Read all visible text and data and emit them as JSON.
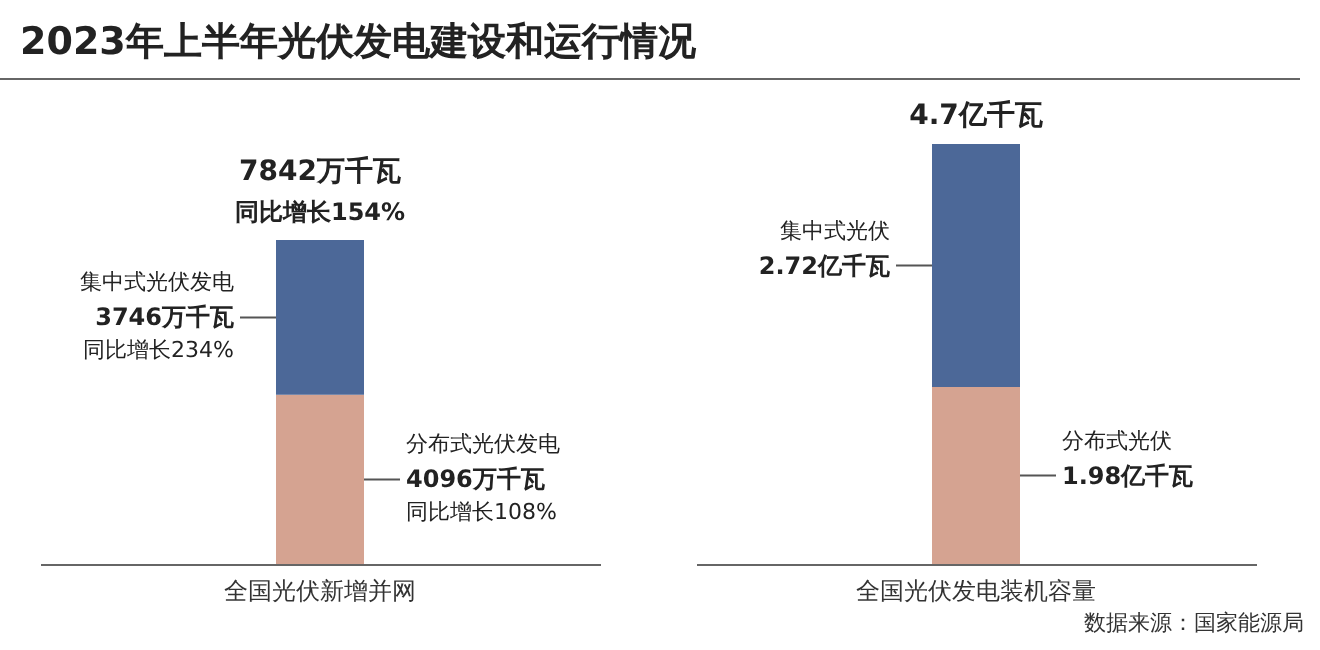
{
  "chart_data": [
    {
      "type": "bar",
      "title": "2023年上半年光伏发电建设和运行情况",
      "stacked": true,
      "categories": [
        "全国光伏新增并网"
      ],
      "series": [
        {
          "name": "分布式光伏发电",
          "color": "#d5a391",
          "values": [
            4096
          ],
          "value_labels": [
            "4096万千瓦"
          ]
        },
        {
          "name": "集中式光伏发电",
          "color": "#4c6898",
          "values": [
            3746
          ],
          "value_labels": [
            "3746万千瓦"
          ]
        }
      ],
      "totals": [
        "7842万千瓦"
      ],
      "annotations": [
        "同比增长154%",
        "同比增长234%",
        "同比增长108%"
      ]
    },
    {
      "type": "bar",
      "stacked": true,
      "categories": [
        "全国光伏发电装机容量"
      ],
      "series": [
        {
          "name": "分布式光伏",
          "color": "#d5a391",
          "values": [
            1.98
          ],
          "value_labels": [
            "1.98亿千瓦"
          ]
        },
        {
          "name": "集中式光伏",
          "color": "#4c6898",
          "values": [
            2.72
          ],
          "value_labels": [
            "2.72亿千瓦"
          ]
        }
      ],
      "totals": [
        "4.7亿千瓦"
      ],
      "annotations": [
        "数据来源：国家能源局"
      ]
    }
  ]
}
